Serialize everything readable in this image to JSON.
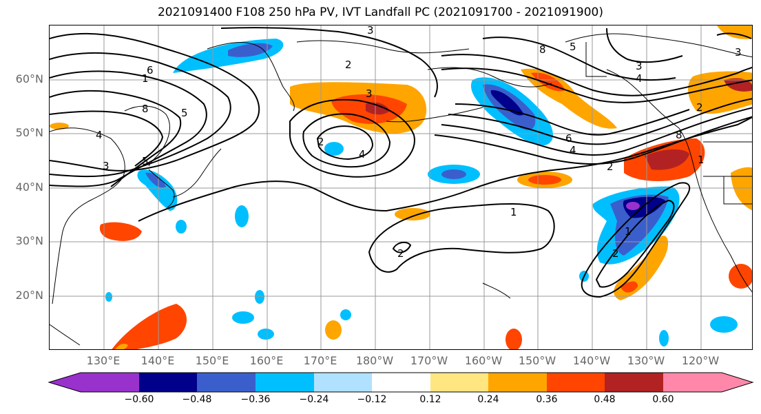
{
  "title": "2021091400 F108 250 hPa PV, IVT Landfall PC (2021091700 - 2021091900)",
  "lat_labels": [
    "60°N",
    "50°N",
    "40°N",
    "30°N",
    "20°N"
  ],
  "lon_labels": [
    "130°E",
    "140°E",
    "150°E",
    "160°E",
    "170°E",
    "180°W",
    "170°W",
    "160°W",
    "150°W",
    "140°W",
    "130°W",
    "120°W"
  ],
  "colorbar": {
    "ticks": [
      "−0.60",
      "−0.48",
      "−0.36",
      "−0.24",
      "−0.12",
      "0.12",
      "0.24",
      "0.36",
      "0.48",
      "0.60"
    ],
    "colors": [
      "#9932cc",
      "#00008b",
      "#3a5fcd",
      "#00bfff",
      "#b0e2ff",
      "#ffffff",
      "#ffe680",
      "#ffa500",
      "#ff4500",
      "#b22222",
      "#ff88aa"
    ]
  },
  "contour_labels": [
    "3",
    "6",
    "1",
    "8",
    "5",
    "4",
    "3",
    "2",
    "5",
    "3",
    "2",
    "4",
    "8",
    "5",
    "3",
    "4",
    "6",
    "4",
    "2",
    "8",
    "1",
    "2",
    "1",
    "2",
    "1",
    "2",
    "3"
  ]
}
